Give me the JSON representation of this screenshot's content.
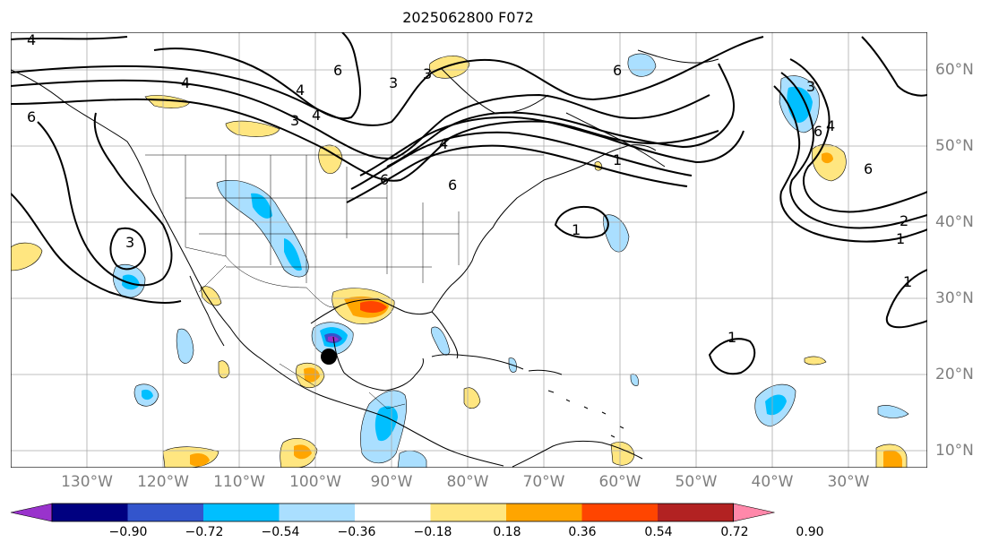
{
  "title": "2025062800 F072",
  "lon_labels": [
    "130°W",
    "120°W",
    "110°W",
    "100°W",
    "90°W",
    "80°W",
    "70°W",
    "60°W",
    "50°W",
    "40°W",
    "30°W"
  ],
  "lat_labels": [
    "60°N",
    "50°N",
    "40°N",
    "30°N",
    "20°N",
    "10°N"
  ],
  "colorbar": {
    "ticks": [
      "−0.90",
      "−0.72",
      "−0.54",
      "−0.36",
      "−0.18",
      "0.18",
      "0.36",
      "0.54",
      "0.72",
      "0.90"
    ],
    "colors": [
      "#9933cc",
      "#000080",
      "#3355cc",
      "#00bfff",
      "#aadfff",
      "#ffffff",
      "#ffe680",
      "#ffa500",
      "#ff4500",
      "#b22222",
      "#ff88aa"
    ]
  },
  "contour_labels": [
    "4",
    "4",
    "3",
    "6",
    "6",
    "3",
    "4",
    "3",
    "4",
    "6",
    "4",
    "1",
    "1",
    "3",
    "6",
    "1",
    "1",
    "2",
    "6",
    "6",
    "3",
    "4",
    "1",
    "6"
  ],
  "marker": {
    "name": "storm-center-marker",
    "lon": -97.7,
    "lat": 22.6,
    "color": "#000000"
  },
  "fill_colors": {
    "land_border": "#000000",
    "grid": "#aaaaaa"
  }
}
